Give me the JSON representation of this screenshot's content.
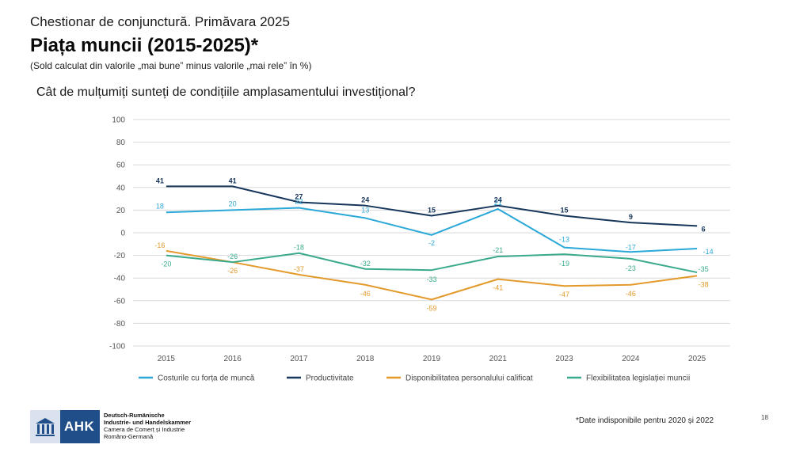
{
  "header": {
    "supertitle": "Chestionar de conjunctură. Primăvara 2025",
    "title": "Piața muncii (2015-2025)*",
    "subtitle": "(Sold calculat din valorile „mai bune” minus valorile „mai rele” în %)",
    "question": "Cât de mulțumiți sunteți de condițiile amplasamentului investițional?"
  },
  "chart_data": {
    "type": "line",
    "categories": [
      "2015",
      "2016",
      "2017",
      "2018",
      "2019",
      "2021",
      "2023",
      "2024",
      "2025"
    ],
    "ylim": [
      -100,
      100
    ],
    "yticks": [
      100,
      80,
      60,
      40,
      20,
      0,
      -20,
      -40,
      -60,
      -80,
      -100
    ],
    "grid": true,
    "legend": "bottom",
    "series": [
      {
        "name": "Costurile cu forța de muncă",
        "color": "#2aa8d8",
        "values": [
          18,
          20,
          22,
          13,
          -2,
          21,
          -13,
          -17,
          -14
        ]
      },
      {
        "name": "Productivitate",
        "color": "#16365c",
        "values": [
          41,
          41,
          27,
          24,
          15,
          24,
          15,
          9,
          6
        ]
      },
      {
        "name": "Disponibilitatea personalului calificat",
        "color": "#e39a2b",
        "values": [
          -16,
          -26,
          -37,
          -46,
          -59,
          -41,
          -47,
          -46,
          -38
        ]
      },
      {
        "name": "Flexibilitatea legislației muncii",
        "color": "#3aaa8c",
        "values": [
          -20,
          -26,
          -18,
          -32,
          -33,
          -21,
          -19,
          -23,
          -35
        ]
      }
    ]
  },
  "footer": {
    "note": "*Date indisponibile pentru 2020 și  2022",
    "page": "18",
    "logo_text": "AHK",
    "logo_lines": [
      "Deutsch-Rumänische",
      "Industrie- und Handelskammer",
      "Camera de Comerț și Industrie",
      "Româno-Germană"
    ]
  }
}
